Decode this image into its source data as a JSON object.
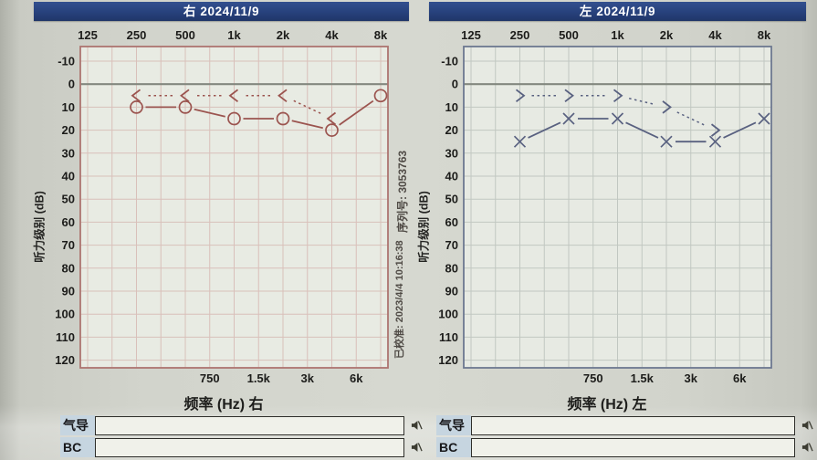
{
  "panels": [
    {
      "id": "right-ear",
      "title": "右 2024/11/9",
      "ylabel": "听力级别 (dB)",
      "xlabel": "频率 (Hz) 右",
      "annotations": {
        "serial": "序列号: 3053763",
        "calibrated": "已校准: 2023/4/4 10:16:38"
      },
      "colors": {
        "border": "#ad7570",
        "grid": "#d9c0ba",
        "data": "#9b544f",
        "zero_line": "#83887f",
        "plot_bg": "#e8ebe3"
      },
      "rows": [
        {
          "label": "气导",
          "value": "",
          "icon": "muted-speaker-icon"
        },
        {
          "label": "BC",
          "value": "",
          "icon": "muted-speaker-icon"
        }
      ]
    },
    {
      "id": "left-ear",
      "title": "左 2024/11/9",
      "ylabel": "听力级别 (dB)",
      "xlabel": "频率 (Hz) 左",
      "colors": {
        "border": "#6d7890",
        "grid": "#c1c7c1",
        "data": "#596180",
        "zero_line": "#83887f",
        "plot_bg": "#e7eae3"
      },
      "rows": [
        {
          "label": "气导",
          "value": "",
          "icon": "muted-speaker-icon"
        },
        {
          "label": "BC",
          "value": "",
          "icon": "muted-speaker-icon"
        }
      ]
    }
  ],
  "chart_data": [
    {
      "type": "line",
      "title": "右 2024/11/9",
      "xlabel": "频率 (Hz) 右",
      "ylabel": "听力级别 (dB)",
      "x_major_labels": [
        "125",
        "250",
        "500",
        "1k",
        "2k",
        "4k",
        "8k"
      ],
      "x_minor_labels": [
        "750",
        "1.5k",
        "3k",
        "6k"
      ],
      "ylim": [
        -10,
        120
      ],
      "yticks": [
        -10,
        0,
        10,
        20,
        30,
        40,
        50,
        60,
        70,
        80,
        90,
        100,
        110,
        120
      ],
      "grid": true,
      "legend": "none",
      "series": [
        {
          "name": "air_conduction",
          "marker": "circle",
          "line_style": "solid",
          "x": [
            "250",
            "500",
            "1k",
            "2k",
            "4k",
            "8k"
          ],
          "y": [
            10,
            10,
            15,
            15,
            20,
            5
          ]
        },
        {
          "name": "bone_conduction",
          "marker": "<",
          "line_style": "dotted",
          "x": [
            "250",
            "500",
            "1k",
            "2k",
            "4k"
          ],
          "y": [
            5,
            5,
            5,
            5,
            15
          ]
        }
      ]
    },
    {
      "type": "line",
      "title": "左 2024/11/9",
      "xlabel": "频率 (Hz) 左",
      "ylabel": "听力级别 (dB)",
      "x_major_labels": [
        "125",
        "250",
        "500",
        "1k",
        "2k",
        "4k",
        "8k"
      ],
      "x_minor_labels": [
        "750",
        "1.5k",
        "3k",
        "6k"
      ],
      "ylim": [
        -10,
        120
      ],
      "yticks": [
        -10,
        0,
        10,
        20,
        30,
        40,
        50,
        60,
        70,
        80,
        90,
        100,
        110,
        120
      ],
      "grid": true,
      "legend": "none",
      "series": [
        {
          "name": "air_conduction",
          "marker": "x",
          "line_style": "solid",
          "x": [
            "250",
            "500",
            "1k",
            "2k",
            "4k",
            "8k"
          ],
          "y": [
            25,
            15,
            15,
            25,
            25,
            15
          ]
        },
        {
          "name": "bone_conduction",
          "marker": ">",
          "line_style": "dotted",
          "x": [
            "250",
            "500",
            "1k",
            "2k",
            "4k"
          ],
          "y": [
            5,
            5,
            5,
            10,
            20
          ]
        }
      ]
    }
  ]
}
